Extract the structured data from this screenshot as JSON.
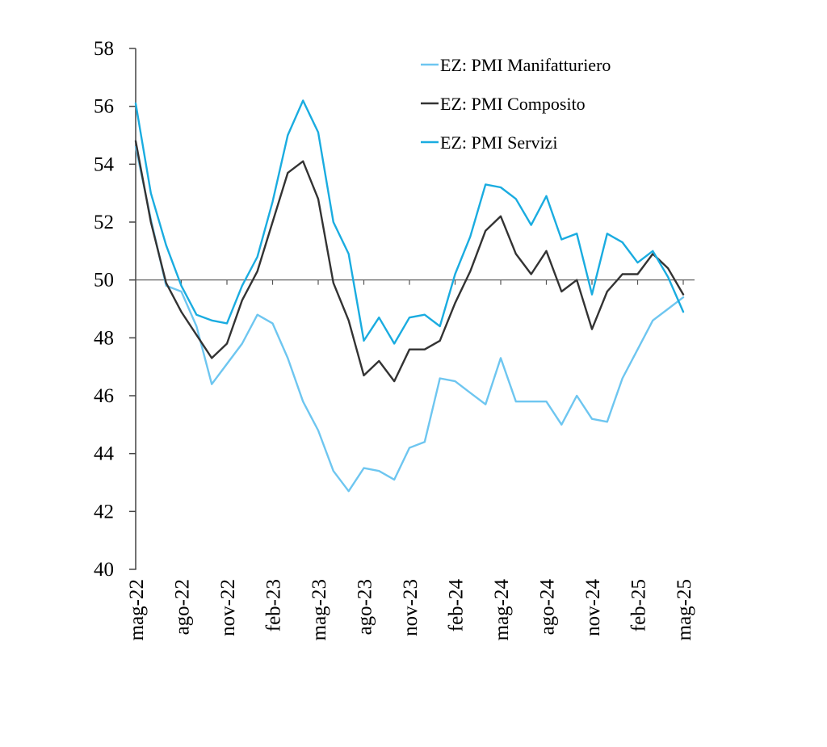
{
  "chart_data": {
    "type": "line",
    "title": "",
    "xlabel": "",
    "ylabel": "",
    "ylim": [
      40,
      58
    ],
    "yticks": [
      40,
      42,
      44,
      46,
      48,
      50,
      52,
      54,
      56,
      58
    ],
    "reference_line": 50,
    "grid": false,
    "legend_position": "top-right",
    "x": [
      "mag-22",
      "giu-22",
      "lug-22",
      "ago-22",
      "set-22",
      "ott-22",
      "nov-22",
      "dic-22",
      "gen-23",
      "feb-23",
      "mar-23",
      "apr-23",
      "mag-23",
      "giu-23",
      "lug-23",
      "ago-23",
      "set-23",
      "ott-23",
      "nov-23",
      "dic-23",
      "gen-24",
      "feb-24",
      "mar-24",
      "apr-24",
      "mag-24",
      "giu-24",
      "lug-24",
      "ago-24",
      "set-24",
      "ott-24",
      "nov-24",
      "dic-24",
      "gen-25",
      "feb-25",
      "mar-25",
      "apr-25",
      "mag-25"
    ],
    "xtick_labels": [
      "mag-22",
      "ago-22",
      "nov-22",
      "feb-23",
      "mag-23",
      "ago-23",
      "nov-23",
      "feb-24",
      "mag-24",
      "ago-24",
      "nov-24",
      "feb-25",
      "mag-25"
    ],
    "series": [
      {
        "name": "EZ: PMI Manifatturiero",
        "color": "#6EC6F0",
        "values": [
          54.6,
          52.1,
          49.8,
          49.6,
          48.4,
          46.4,
          47.1,
          47.8,
          48.8,
          48.5,
          47.3,
          45.8,
          44.8,
          43.4,
          42.7,
          43.5,
          43.4,
          43.1,
          44.2,
          44.4,
          46.6,
          46.5,
          46.1,
          45.7,
          47.3,
          45.8,
          45.8,
          45.8,
          45.0,
          46.0,
          45.2,
          45.1,
          46.6,
          47.6,
          48.6,
          49.0,
          49.4
        ]
      },
      {
        "name": "EZ: PMI Composito",
        "color": "#333333",
        "values": [
          54.8,
          52.0,
          49.9,
          48.9,
          48.1,
          47.3,
          47.8,
          49.3,
          50.3,
          52.0,
          53.7,
          54.1,
          52.8,
          49.9,
          48.6,
          46.7,
          47.2,
          46.5,
          47.6,
          47.6,
          47.9,
          49.2,
          50.3,
          51.7,
          52.2,
          50.9,
          50.2,
          51.0,
          49.6,
          50.0,
          48.3,
          49.6,
          50.2,
          50.2,
          50.9,
          50.4,
          49.5
        ]
      },
      {
        "name": "EZ: PMI Servizi",
        "color": "#1AACE0",
        "values": [
          56.1,
          53.0,
          51.2,
          49.8,
          48.8,
          48.6,
          48.5,
          49.8,
          50.8,
          52.7,
          55.0,
          56.2,
          55.1,
          52.0,
          50.9,
          47.9,
          48.7,
          47.8,
          48.7,
          48.8,
          48.4,
          50.2,
          51.5,
          53.3,
          53.2,
          52.8,
          51.9,
          52.9,
          51.4,
          51.6,
          49.5,
          51.6,
          51.3,
          50.6,
          51.0,
          50.1,
          48.9
        ]
      }
    ]
  }
}
